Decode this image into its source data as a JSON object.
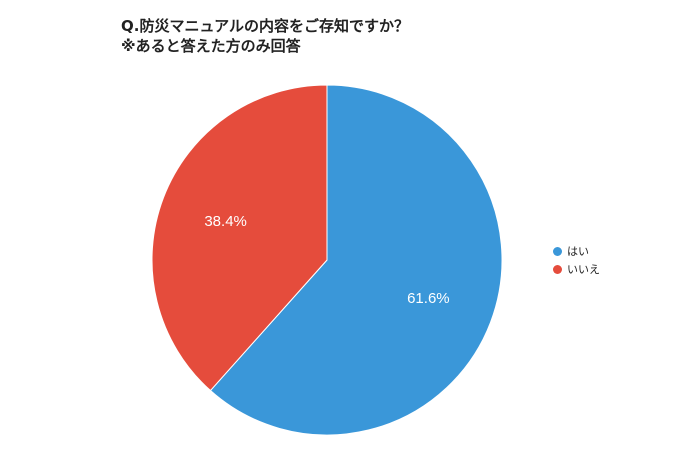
{
  "title_line1": "Q.防災マニュアルの内容をご存知ですか？",
  "title_line2": "※あると答えた方のみ回答",
  "chart_data": {
    "type": "pie",
    "title": "Q.防災マニュアルの内容をご存知ですか？",
    "subtitle": "※あると答えた方のみ回答",
    "slices": [
      {
        "name": "はい",
        "value": 61.6,
        "label": "61.6%",
        "color": "#3a97d9"
      },
      {
        "name": "いいえ",
        "value": 38.4,
        "label": "38.4%",
        "color": "#e54c3c"
      }
    ],
    "legend_position": "right"
  }
}
